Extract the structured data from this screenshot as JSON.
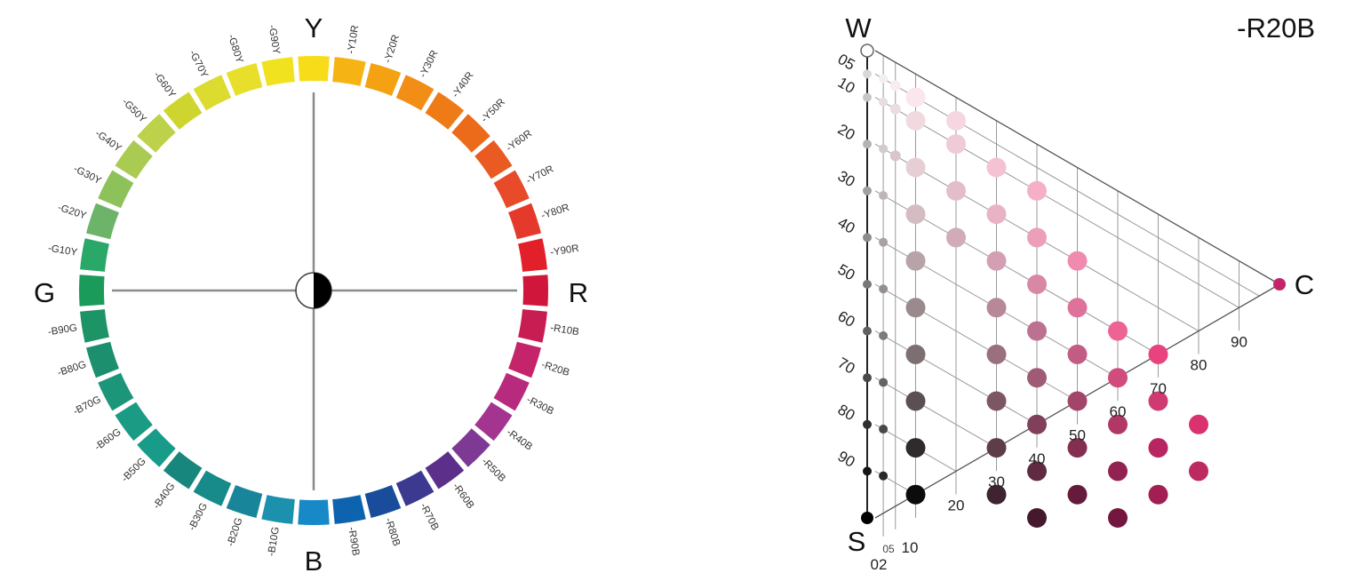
{
  "hue_circle": {
    "label_y": "Y",
    "label_r": "R",
    "label_b": "B",
    "label_g": "G",
    "segments": [
      {
        "label": "",
        "color": "#F7DC1A"
      },
      {
        "label": "-Y10R",
        "color": "#F6B414"
      },
      {
        "label": "-Y20R",
        "color": "#F4A112"
      },
      {
        "label": "-Y30R",
        "color": "#F28D15"
      },
      {
        "label": "-Y40R",
        "color": "#EF7B17"
      },
      {
        "label": "-Y50R",
        "color": "#EC6B1B"
      },
      {
        "label": "-Y60R",
        "color": "#E95B22"
      },
      {
        "label": "-Y70R",
        "color": "#E74B29"
      },
      {
        "label": "-Y80R",
        "color": "#E53A2B"
      },
      {
        "label": "-Y90R",
        "color": "#E2202A"
      },
      {
        "label": "",
        "color": "#D0163A"
      },
      {
        "label": "-R10B",
        "color": "#C81D52"
      },
      {
        "label": "-R20B",
        "color": "#C4246A"
      },
      {
        "label": "-R30B",
        "color": "#B72A7E"
      },
      {
        "label": "-R40B",
        "color": "#A33591"
      },
      {
        "label": "-R50B",
        "color": "#7E3995"
      },
      {
        "label": "-R60B",
        "color": "#5C2F8A"
      },
      {
        "label": "-R70B",
        "color": "#3C3990"
      },
      {
        "label": "-R80B",
        "color": "#194C9A"
      },
      {
        "label": "-R90B",
        "color": "#0D63AE"
      },
      {
        "label": "",
        "color": "#1789C8"
      },
      {
        "label": "-B10G",
        "color": "#1B91AE"
      },
      {
        "label": "-B20G",
        "color": "#18859A"
      },
      {
        "label": "-B30G",
        "color": "#178A8A"
      },
      {
        "label": "-B40G",
        "color": "#17867C"
      },
      {
        "label": "-B50G",
        "color": "#199B8A"
      },
      {
        "label": "-B60G",
        "color": "#1B9B83"
      },
      {
        "label": "-B70G",
        "color": "#1C9679"
      },
      {
        "label": "-B80G",
        "color": "#1C906E"
      },
      {
        "label": "-B90G",
        "color": "#1C9466"
      },
      {
        "label": "",
        "color": "#1B9B5A"
      },
      {
        "label": "-G10Y",
        "color": "#2AA867"
      },
      {
        "label": "-G20Y",
        "color": "#6CB46A"
      },
      {
        "label": "-G30Y",
        "color": "#8DC25A"
      },
      {
        "label": "-G40Y",
        "color": "#A9CB52"
      },
      {
        "label": "-G50Y",
        "color": "#BDD14A"
      },
      {
        "label": "-G60Y",
        "color": "#CFD52F"
      },
      {
        "label": "-G70Y",
        "color": "#DCDB2F"
      },
      {
        "label": "-G80Y",
        "color": "#E8DF2A"
      },
      {
        "label": "-G90Y",
        "color": "#F1E21F"
      }
    ],
    "center_icon": "half-black-half-white-circle"
  },
  "triangle": {
    "title": "-R20B",
    "vertex_w": "W",
    "vertex_s": "S",
    "vertex_c": "C",
    "blackness_ticks": [
      "05",
      "10",
      "20",
      "30",
      "40",
      "50",
      "60",
      "70",
      "80",
      "90"
    ],
    "chroma_ticks": [
      "02",
      "05",
      "10",
      "20",
      "30",
      "40",
      "50",
      "60",
      "70",
      "80",
      "90"
    ],
    "colors": {
      "frame": "#555555",
      "grid": "#9a9a9a",
      "vertex_c": "#C4246A"
    }
  },
  "chart_data": {
    "type": "scatter",
    "title": "-R20B",
    "xlabel": "",
    "ylabel": "",
    "axes": {
      "blackness_axis_ticks": [
        5,
        10,
        20,
        30,
        40,
        50,
        60,
        70,
        80,
        90
      ],
      "chromaticness_axis_ticks": [
        2,
        5,
        10,
        20,
        30,
        40,
        50,
        60,
        70,
        80,
        90
      ]
    },
    "series": [
      {
        "points": [
          {
            "s": 5,
            "c": 2,
            "color": "#f4eef0"
          },
          {
            "s": 10,
            "c": 2,
            "color": "#e6dde0"
          },
          {
            "s": 20,
            "c": 2,
            "color": "#d2cacc"
          },
          {
            "s": 30,
            "c": 2,
            "color": "#bdb6b8"
          },
          {
            "s": 40,
            "c": 2,
            "color": "#a9a2a4"
          },
          {
            "s": 50,
            "c": 2,
            "color": "#958f91"
          },
          {
            "s": 60,
            "c": 2,
            "color": "#7e797b"
          },
          {
            "s": 70,
            "c": 2,
            "color": "#666264"
          },
          {
            "s": 80,
            "c": 2,
            "color": "#4a4748"
          },
          {
            "s": 90,
            "c": 2,
            "color": "#2a2829"
          },
          {
            "s": 5,
            "c": 5,
            "color": "#f7ecef"
          },
          {
            "s": 10,
            "c": 5,
            "color": "#ebdce1"
          },
          {
            "s": 20,
            "c": 5,
            "color": "#d9c6cc"
          },
          {
            "s": 5,
            "c": 10,
            "color": "#fae6ec"
          },
          {
            "s": 10,
            "c": 10,
            "color": "#f1d9e0"
          },
          {
            "s": 20,
            "c": 10,
            "color": "#e6ced5"
          },
          {
            "s": 30,
            "c": 10,
            "color": "#d3bcc2"
          },
          {
            "s": 40,
            "c": 10,
            "color": "#b7a3a8"
          },
          {
            "s": 50,
            "c": 10,
            "color": "#998a8e"
          },
          {
            "s": 60,
            "c": 10,
            "color": "#7c6f72"
          },
          {
            "s": 70,
            "c": 10,
            "color": "#5a5053"
          },
          {
            "s": 80,
            "c": 10,
            "color": "#2f2a2c"
          },
          {
            "s": 90,
            "c": 10,
            "color": "#0d0b0c"
          },
          {
            "s": 5,
            "c": 20,
            "color": "#f6d6e1"
          },
          {
            "s": 10,
            "c": 20,
            "color": "#eecbd6"
          },
          {
            "s": 20,
            "c": 20,
            "color": "#e4bdca"
          },
          {
            "s": 30,
            "c": 20,
            "color": "#d1abb7"
          },
          {
            "s": 10,
            "c": 30,
            "color": "#f5c2d3"
          },
          {
            "s": 20,
            "c": 30,
            "color": "#e9b3c5"
          },
          {
            "s": 30,
            "c": 30,
            "color": "#d49fb2"
          },
          {
            "s": 40,
            "c": 30,
            "color": "#b78898"
          },
          {
            "s": 50,
            "c": 30,
            "color": "#9a6f7e"
          },
          {
            "s": 60,
            "c": 30,
            "color": "#7d5664"
          },
          {
            "s": 70,
            "c": 30,
            "color": "#5e3d4a"
          },
          {
            "s": 80,
            "c": 30,
            "color": "#3e2430"
          },
          {
            "s": 10,
            "c": 40,
            "color": "#f6afc8"
          },
          {
            "s": 20,
            "c": 40,
            "color": "#ec9fbb"
          },
          {
            "s": 30,
            "c": 40,
            "color": "#d888a5"
          },
          {
            "s": 40,
            "c": 40,
            "color": "#bd7190"
          },
          {
            "s": 50,
            "c": 40,
            "color": "#a05a76"
          },
          {
            "s": 60,
            "c": 40,
            "color": "#80405c"
          },
          {
            "s": 70,
            "c": 40,
            "color": "#602a43"
          },
          {
            "s": 80,
            "c": 40,
            "color": "#44182d"
          },
          {
            "s": 20,
            "c": 50,
            "color": "#f08bb0"
          },
          {
            "s": 30,
            "c": 50,
            "color": "#de729b"
          },
          {
            "s": 40,
            "c": 50,
            "color": "#c35c85"
          },
          {
            "s": 50,
            "c": 50,
            "color": "#a3446b"
          },
          {
            "s": 60,
            "c": 50,
            "color": "#842f52"
          },
          {
            "s": 70,
            "c": 50,
            "color": "#661b3c"
          },
          {
            "s": 30,
            "c": 60,
            "color": "#ec6394"
          },
          {
            "s": 40,
            "c": 60,
            "color": "#cf4c7c"
          },
          {
            "s": 50,
            "c": 60,
            "color": "#b03766"
          },
          {
            "s": 60,
            "c": 60,
            "color": "#92224f"
          },
          {
            "s": 70,
            "c": 60,
            "color": "#74173e"
          },
          {
            "s": 30,
            "c": 70,
            "color": "#e8437f"
          },
          {
            "s": 40,
            "c": 70,
            "color": "#d03a73"
          },
          {
            "s": 50,
            "c": 70,
            "color": "#b72661"
          },
          {
            "s": 60,
            "c": 70,
            "color": "#a21f54"
          },
          {
            "s": 40,
            "c": 80,
            "color": "#d9326e"
          },
          {
            "s": 50,
            "c": 80,
            "color": "#bd2a62"
          }
        ]
      }
    ]
  }
}
